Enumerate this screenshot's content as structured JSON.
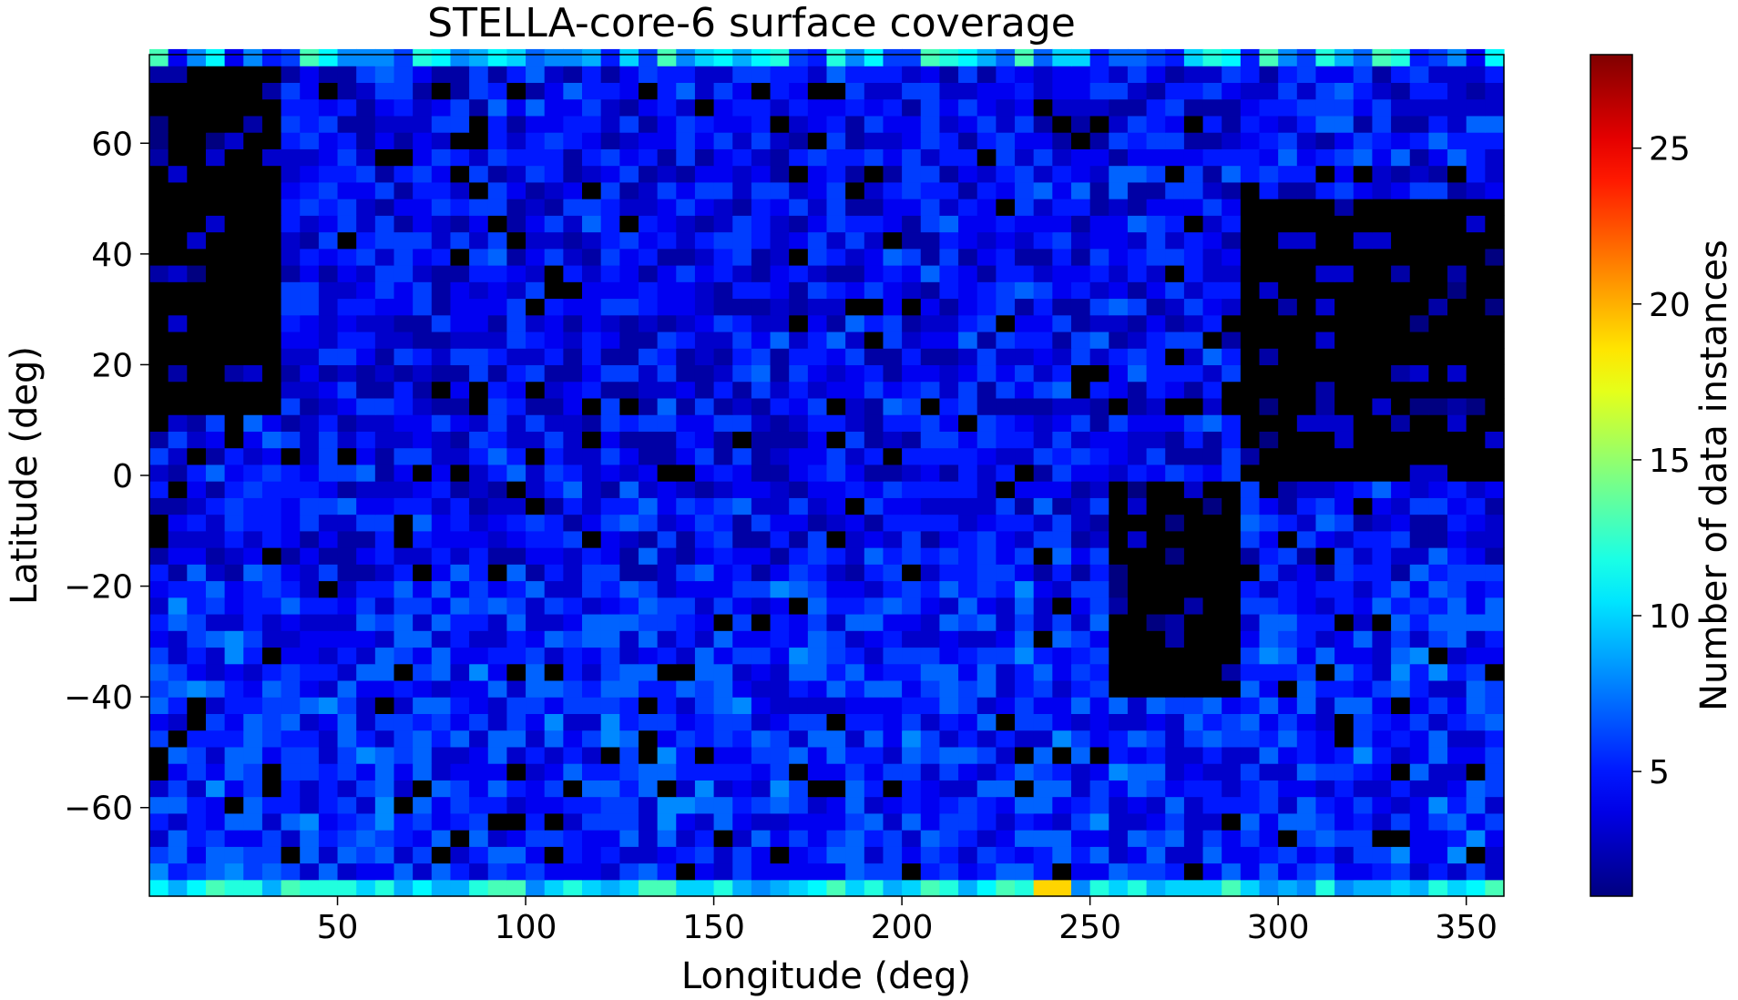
{
  "chart_data": {
    "type": "heatmap",
    "title": "STELLA-core-6 surface coverage",
    "xlabel": "Longitude (deg)",
    "ylabel": "Latitude (deg)",
    "colorbar_label": "Number of data instances",
    "colormap": "jet",
    "x_range": [
      0,
      360
    ],
    "y_range": [
      -76,
      76
    ],
    "color_range": [
      1,
      28
    ],
    "x_ticks": [
      50,
      100,
      150,
      200,
      250,
      300,
      350
    ],
    "y_ticks": [
      -60,
      -40,
      -20,
      0,
      20,
      40,
      60
    ],
    "color_ticks": [
      5,
      10,
      15,
      20,
      25
    ],
    "x_tick_labels": [
      "50",
      "100",
      "150",
      "200",
      "250",
      "300",
      "350"
    ],
    "y_tick_labels": [
      "−60",
      "−40",
      "−20",
      "0",
      "20",
      "40",
      "60"
    ],
    "color_tick_labels": [
      "5",
      "10",
      "15",
      "20",
      "25"
    ],
    "grid": false,
    "bins": {
      "x_bin_deg": 5,
      "y_bin_deg": 3,
      "nx": 72,
      "ny": 51
    },
    "bands": [
      {
        "lat_range": [
          73,
          76
        ],
        "typical_count": 9,
        "note": "top edge row"
      },
      {
        "lat_range": [
          -76,
          -73
        ],
        "typical_count": 12,
        "max_count": 19,
        "max_at_lon": 242,
        "note": "bottom edge row"
      }
    ],
    "zero_regions": [
      {
        "lon": [
          0,
          35
        ],
        "lat": [
          10,
          76
        ]
      },
      {
        "lon": [
          255,
          290
        ],
        "lat": [
          -40,
          0
        ]
      },
      {
        "lon": [
          330,
          360
        ],
        "lat": [
          0,
          50
        ]
      },
      {
        "lon": [
          290,
          330
        ],
        "lat": [
          0,
          50
        ]
      }
    ],
    "typical_interior_count": 4
  }
}
